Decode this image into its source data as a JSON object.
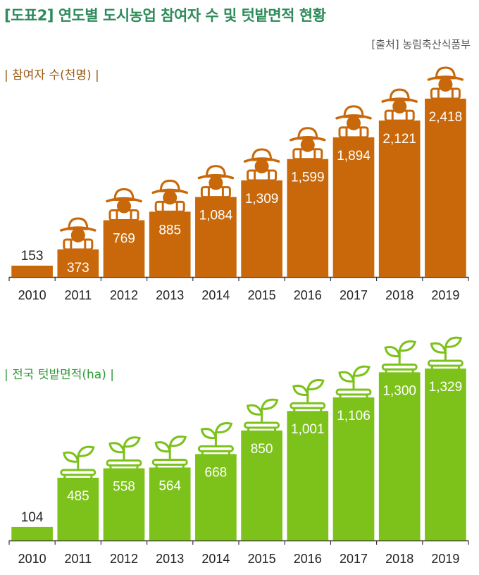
{
  "title": "[도표2] 연도별 도시농업 참여자 수 및 텃밭면적 현황",
  "source": "[출처] 농림축산식품부",
  "colors": {
    "title": "#2e8b5a",
    "orange": "#c8680a",
    "green": "#7cc21a",
    "axis": "#333333"
  },
  "chart_data": [
    {
      "type": "bar",
      "title": "| 참여자 수(천명) |",
      "categories": [
        "2010",
        "2011",
        "2012",
        "2013",
        "2014",
        "2015",
        "2016",
        "2017",
        "2018",
        "2019"
      ],
      "values": [
        153,
        373,
        769,
        885,
        1084,
        1309,
        1599,
        1894,
        2121,
        2418
      ],
      "value_labels": [
        "153",
        "373",
        "769",
        "885",
        "1,084",
        "1,309",
        "1,599",
        "1,894",
        "2,121",
        "2,418"
      ],
      "icon": "farmer-hat-icon",
      "color": "#c8680a"
    },
    {
      "type": "bar",
      "title": "| 전국 텃밭면적(ha) |",
      "categories": [
        "2010",
        "2011",
        "2012",
        "2013",
        "2014",
        "2015",
        "2016",
        "2017",
        "2018",
        "2019"
      ],
      "values": [
        104,
        485,
        558,
        564,
        668,
        850,
        1001,
        1106,
        1300,
        1329
      ],
      "value_labels": [
        "104",
        "485",
        "558",
        "564",
        "668",
        "850",
        "1,001",
        "1,106",
        "1,300",
        "1,329"
      ],
      "icon": "sprout-pot-icon",
      "color": "#7cc21a"
    }
  ]
}
